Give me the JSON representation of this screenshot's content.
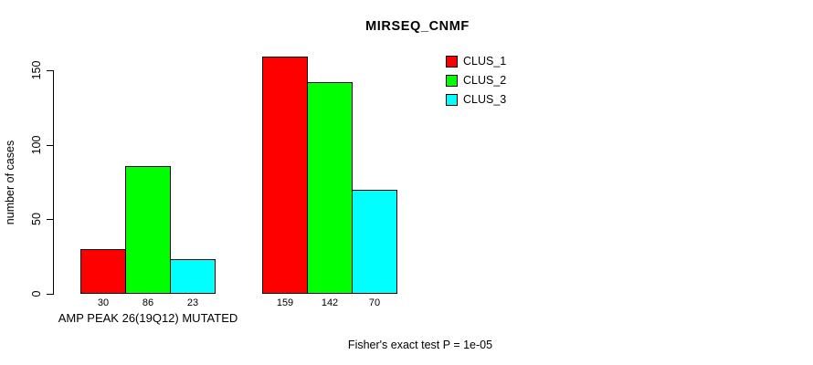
{
  "title": "MIRSEQ_CNMF",
  "ylabel": "number of cases",
  "group_label": "AMP PEAK 26(19Q12) MUTATED",
  "footer": "Fisher's exact test P = 1e-05",
  "legend": [
    {
      "label": "CLUS_1",
      "color": "#FF0000"
    },
    {
      "label": "CLUS_2",
      "color": "#00FF00"
    },
    {
      "label": "CLUS_3",
      "color": "#00FFFF"
    }
  ],
  "chart_data": {
    "type": "bar",
    "title": "MIRSEQ_CNMF",
    "xlabel": "",
    "ylabel": "number of cases",
    "ylim": [
      0,
      150
    ],
    "yticks": [
      0,
      50,
      100,
      150
    ],
    "grid": false,
    "legend_position": "top-right",
    "bar_border_color": "#000000",
    "groups": [
      {
        "label": "AMP PEAK 26(19Q12) MUTATED",
        "values": [
          30,
          86,
          23
        ]
      },
      {
        "label": "",
        "values": [
          159,
          142,
          70
        ]
      }
    ],
    "series": [
      {
        "name": "CLUS_1",
        "color": "#FF0000",
        "values": [
          30,
          159
        ]
      },
      {
        "name": "CLUS_2",
        "color": "#00FF00",
        "values": [
          86,
          142
        ]
      },
      {
        "name": "CLUS_3",
        "color": "#00FFFF",
        "values": [
          23,
          70
        ]
      }
    ],
    "bar_value_labels": [
      30,
      86,
      23,
      159,
      142,
      70
    ],
    "annotation": "Fisher's exact test P = 1e-05"
  }
}
